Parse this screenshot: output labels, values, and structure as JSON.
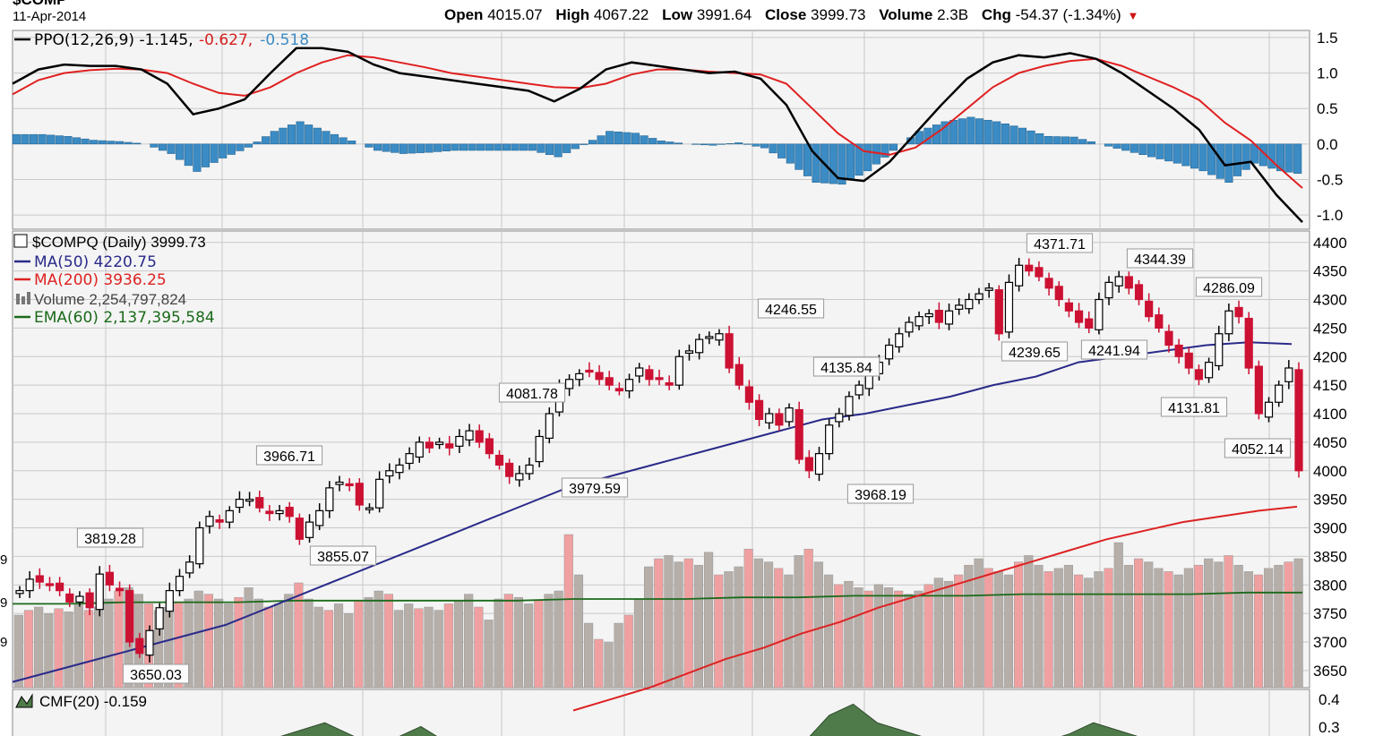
{
  "header": {
    "date": "11-Apr-2014",
    "open_label": "Open",
    "open": "4015.07",
    "high_label": "High",
    "high": "4067.22",
    "low_label": "Low",
    "low": "3991.64",
    "close_label": "Close",
    "close": "3999.73",
    "volume_label": "Volume",
    "volume": "2.3B",
    "chg_label": "Chg",
    "chg": "-54.37 (-1.34%)",
    "chg_arrow": "▼"
  },
  "colors": {
    "up": "#ffffff",
    "down": "#cc1133",
    "ma50": "#2a2a8a",
    "ma200": "#dd2222",
    "ppo": "#000000",
    "ppo_signal": "#e02020",
    "ppo_hist": "#3b8bc4",
    "vol_up": "#b5aea9",
    "vol_down": "#f0a0a0",
    "ema_vol": "#1a6a1a",
    "cmf": "#4f7a4a",
    "grid": "#c8c8c8"
  },
  "chart_data": [
    {
      "type": "line",
      "panel": "ppo",
      "legend": {
        "label": "PPO(12,26,9)",
        "ppo": "-1.145",
        "signal": "-0.627",
        "hist": "-0.518"
      },
      "ylim": [
        -1.2,
        1.6
      ],
      "yticks": [
        "1.5",
        "1.0",
        "0.5",
        "0.0",
        "-0.5",
        "-1.0"
      ],
      "series": [
        {
          "name": "PPO",
          "values": [
            0.85,
            1.05,
            1.12,
            1.1,
            1.1,
            1.05,
            0.85,
            0.42,
            0.5,
            0.63,
            1.0,
            1.35,
            1.35,
            1.3,
            1.12,
            1.0,
            0.95,
            0.9,
            0.85,
            0.8,
            0.75,
            0.6,
            0.78,
            1.05,
            1.15,
            1.1,
            1.05,
            1.0,
            1.02,
            0.92,
            0.55,
            -0.1,
            -0.48,
            -0.52,
            -0.25,
            0.15,
            0.55,
            0.92,
            1.15,
            1.25,
            1.22,
            1.28,
            1.2,
            1.0,
            0.75,
            0.5,
            0.2,
            -0.3,
            -0.25,
            -0.72,
            -1.1
          ]
        },
        {
          "name": "Signal",
          "values": [
            0.7,
            0.9,
            1.0,
            1.04,
            1.06,
            1.05,
            1.0,
            0.85,
            0.72,
            0.68,
            0.8,
            1.0,
            1.15,
            1.25,
            1.22,
            1.15,
            1.08,
            1.0,
            0.95,
            0.9,
            0.85,
            0.8,
            0.79,
            0.85,
            0.98,
            1.05,
            1.05,
            1.02,
            1.0,
            0.98,
            0.85,
            0.5,
            0.15,
            -0.1,
            -0.15,
            -0.05,
            0.2,
            0.5,
            0.8,
            1.0,
            1.1,
            1.17,
            1.2,
            1.1,
            0.95,
            0.8,
            0.62,
            0.3,
            0.05,
            -0.3,
            -0.62
          ]
        }
      ]
    },
    {
      "type": "candlestick",
      "panel": "price",
      "legend": [
        {
          "label": "$COMPQ (Daily)",
          "value": "3999.73"
        },
        {
          "label": "MA(50)",
          "value": "4220.75"
        },
        {
          "label": "MA(200)",
          "value": "3936.25"
        },
        {
          "label": "Volume",
          "value": "2,254,797,824"
        },
        {
          "label": "EMA(60)",
          "value": "2,137,395,584"
        }
      ],
      "ylim": [
        3620,
        4420
      ],
      "yticks": [
        "4400",
        "4350",
        "4300",
        "4250",
        "4200",
        "4150",
        "4100",
        "4050",
        "4000",
        "3950",
        "3900",
        "3850",
        "3800",
        "3750",
        "3700",
        "3650"
      ],
      "close_series": [
        3790,
        3810,
        3805,
        3800,
        3790,
        3770,
        3780,
        3760,
        3819,
        3800,
        3790,
        3700,
        3680,
        3720,
        3760,
        3790,
        3815,
        3840,
        3900,
        3920,
        3910,
        3930,
        3950,
        3950,
        3935,
        3925,
        3930,
        3920,
        3880,
        3910,
        3930,
        3970,
        3980,
        3975,
        3940,
        3935,
        3985,
        4000,
        4010,
        4030,
        4050,
        4040,
        4050,
        4040,
        4060,
        4070,
        4050,
        4030,
        4010,
        3990,
        3995,
        4010,
        4060,
        4100,
        4150,
        4160,
        4170,
        4175,
        4160,
        4150,
        4140,
        4160,
        4180,
        4160,
        4160,
        4150,
        4200,
        4210,
        4230,
        4235,
        4240,
        4180,
        4150,
        4120,
        4090,
        4100,
        4080,
        4110,
        4020,
        4000,
        4030,
        4080,
        4100,
        4130,
        4150,
        4170,
        4190,
        4220,
        4240,
        4260,
        4270,
        4275,
        4260,
        4280,
        4290,
        4300,
        4310,
        4320,
        4240,
        4330,
        4360,
        4350,
        4340,
        4320,
        4300,
        4280,
        4260,
        4250,
        4300,
        4330,
        4340,
        4320,
        4300,
        4270,
        4250,
        4220,
        4200,
        4180,
        4160,
        4190,
        4240,
        4280,
        4270,
        4180,
        4100,
        4120,
        4150,
        4180,
        4000
      ],
      "annotations": [
        {
          "label": "3819.28",
          "value": 3819.28,
          "side": "above"
        },
        {
          "label": "3650.03",
          "value": 3650.03,
          "side": "below"
        },
        {
          "label": "3966.71",
          "value": 3966.71,
          "side": "above"
        },
        {
          "label": "3855.07",
          "value": 3855.07,
          "side": "below"
        },
        {
          "label": "4081.78",
          "value": 4081.78,
          "side": "above"
        },
        {
          "label": "3979.59",
          "value": 3979.59,
          "side": "below"
        },
        {
          "label": "4246.55",
          "value": 4246.55,
          "side": "above"
        },
        {
          "label": "4135.84",
          "value": 4135.84,
          "side": "above"
        },
        {
          "label": "3968.19",
          "value": 3968.19,
          "side": "below"
        },
        {
          "label": "4371.71",
          "value": 4371.71,
          "side": "above"
        },
        {
          "label": "4239.65",
          "value": 4239.65,
          "side": "below"
        },
        {
          "label": "4241.94",
          "value": 4241.94,
          "side": "below"
        },
        {
          "label": "4344.39",
          "value": 4344.39,
          "side": "above"
        },
        {
          "label": "4286.09",
          "value": 4286.09,
          "side": "above"
        },
        {
          "label": "4131.81",
          "value": 4131.81,
          "side": "below"
        },
        {
          "label": "4052.14",
          "value": 4052.14,
          "side": "below"
        }
      ],
      "ma50": [
        3630,
        3650,
        3670,
        3690,
        3710,
        3730,
        3760,
        3790,
        3820,
        3850,
        3880,
        3910,
        3940,
        3970,
        3990,
        4010,
        4030,
        4050,
        4070,
        4090,
        4100,
        4115,
        4130,
        4150,
        4165,
        4190,
        4200,
        4210,
        4220,
        4225,
        4222
      ],
      "ma200": [
        3580,
        3600,
        3620,
        3645,
        3670,
        3690,
        3715,
        3735,
        3760,
        3780,
        3800,
        3820,
        3840,
        3860,
        3880,
        3895,
        3910,
        3920,
        3930,
        3937
      ]
    },
    {
      "type": "bar",
      "panel": "volume",
      "series": [
        {
          "name": "Volume",
          "values": [
            0.45,
            0.48,
            0.5,
            0.46,
            0.49,
            0.47,
            0.52,
            0.48,
            0.5,
            0.55,
            0.6,
            0.62,
            0.58,
            0.52,
            0.48,
            0.5,
            0.53,
            0.55,
            0.6,
            0.58,
            0.55,
            0.52,
            0.56,
            0.62,
            0.55,
            0.5,
            0.52,
            0.58,
            0.65,
            0.55,
            0.5,
            0.48,
            0.52,
            0.46,
            0.54,
            0.56,
            0.6,
            0.58,
            0.48,
            0.52,
            0.49,
            0.5,
            0.48,
            0.52,
            0.54,
            0.58,
            0.5,
            0.42,
            0.55,
            0.58,
            0.56,
            0.52,
            0.54,
            0.58,
            0.6,
            0.95,
            0.7,
            0.4,
            0.3,
            0.28,
            0.4,
            0.45,
            0.55,
            0.75,
            0.8,
            0.82,
            0.78,
            0.8,
            0.76,
            0.84,
            0.7,
            0.72,
            0.75,
            0.86,
            0.8,
            0.78,
            0.74,
            0.7,
            0.82,
            0.86,
            0.78,
            0.7,
            0.64,
            0.66,
            0.62,
            0.6,
            0.64,
            0.62,
            0.6,
            0.58,
            0.6,
            0.64,
            0.68,
            0.66,
            0.7,
            0.76,
            0.8,
            0.74,
            0.72,
            0.7,
            0.78,
            0.82,
            0.76,
            0.72,
            0.74,
            0.76,
            0.7,
            0.68,
            0.72,
            0.74,
            0.9,
            0.76,
            0.8,
            0.78,
            0.74,
            0.72,
            0.7,
            0.74,
            0.76,
            0.8,
            0.78,
            0.82,
            0.76,
            0.72,
            0.7,
            0.74,
            0.76,
            0.78,
            0.8
          ]
        },
        {
          "name": "EMA(60)",
          "values": [
            0.52,
            0.52,
            0.53,
            0.53,
            0.53,
            0.54,
            0.54,
            0.54,
            0.54,
            0.54,
            0.55,
            0.55,
            0.55,
            0.56,
            0.56,
            0.57,
            0.57,
            0.57,
            0.58,
            0.58,
            0.58,
            0.58,
            0.59,
            0.59
          ]
        }
      ]
    },
    {
      "type": "area",
      "panel": "cmf",
      "legend": {
        "label": "CMF(20)",
        "value": "-0.159"
      },
      "yticks": [
        "0.4",
        "0.3"
      ],
      "values": [
        0.2,
        0.2,
        0.2,
        0.2,
        0.2,
        0.2,
        0.2,
        0.2,
        0.2,
        0.2,
        0.2,
        0.22,
        0.26,
        0.3,
        0.24,
        0.18,
        0.22,
        0.28,
        0.2,
        0.2,
        0.2,
        0.2,
        0.2,
        0.2,
        0.2,
        0.2,
        0.2,
        0.2,
        0.2,
        0.22,
        0.2,
        0.2,
        0.2,
        0.2,
        0.34,
        0.4,
        0.3,
        0.26,
        0.22,
        0.2,
        0.2,
        0.22,
        0.2,
        0.2,
        0.24,
        0.3,
        0.26,
        0.22,
        0.2,
        0.2,
        0.2,
        0.2,
        0.2,
        0.2,
        0.2
      ]
    }
  ]
}
